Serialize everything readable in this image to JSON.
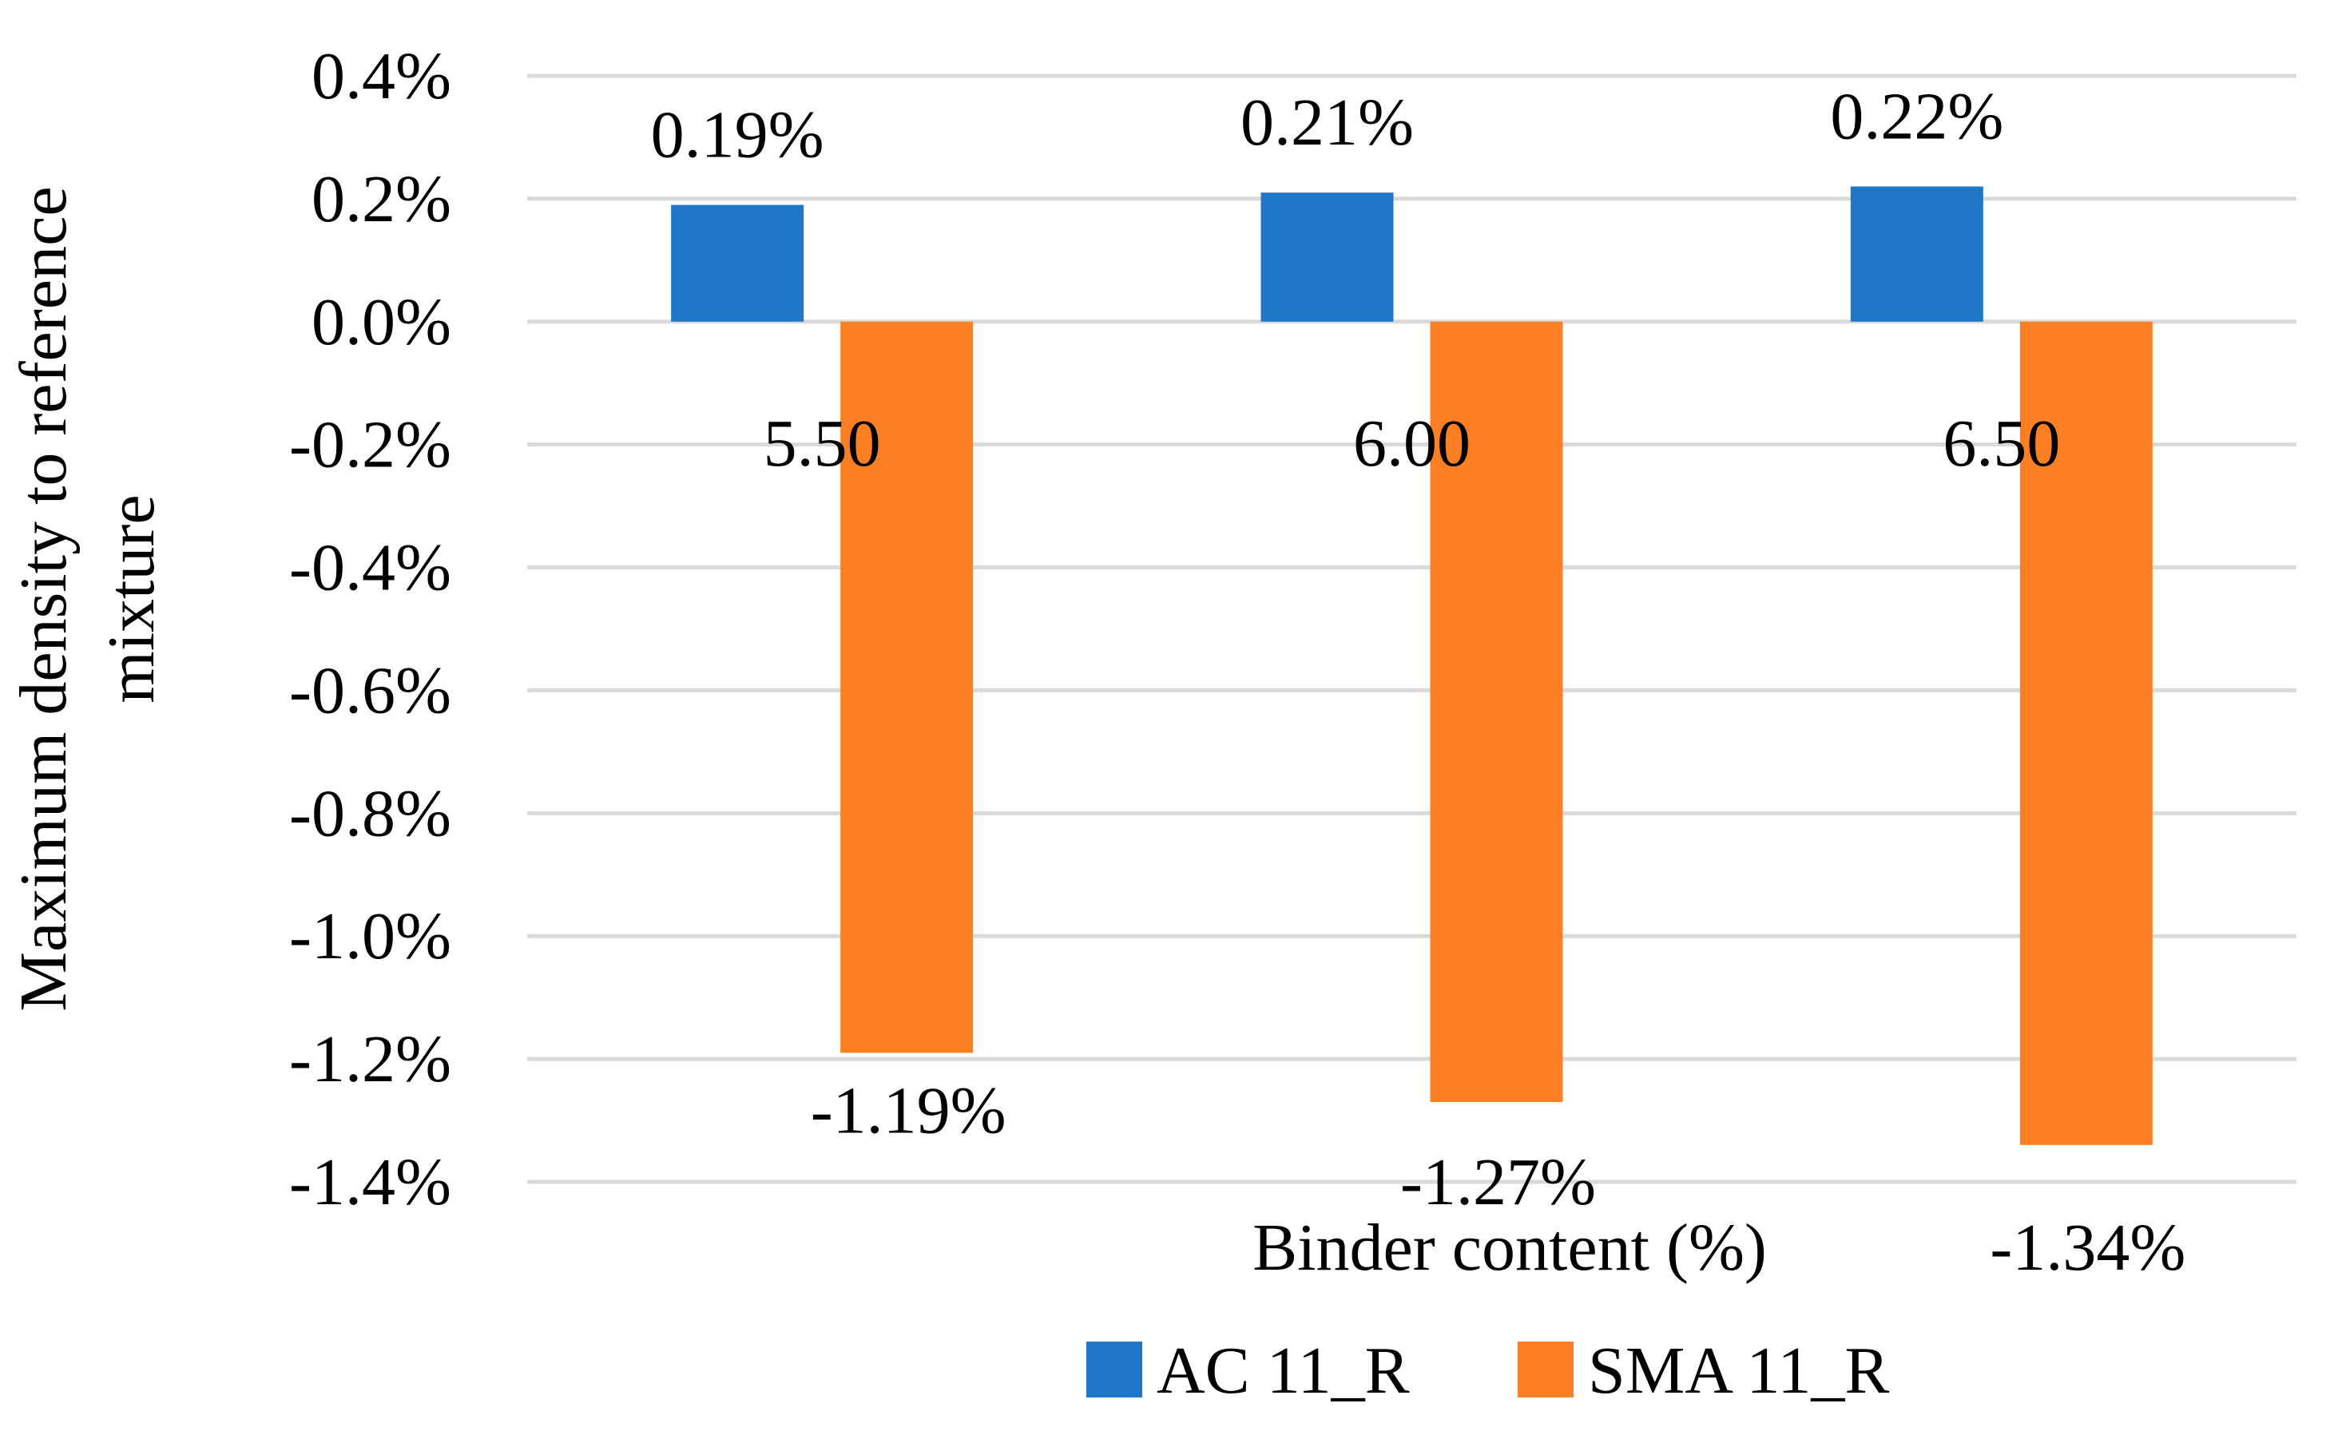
{
  "chart_data": {
    "type": "bar",
    "title": "",
    "xlabel": "Binder content (%)",
    "ylabel_lines": [
      "Maximum density to reference",
      "mixture"
    ],
    "categories": [
      "5.50",
      "6.00",
      "6.50"
    ],
    "series": [
      {
        "name": "AC 11_R",
        "color": "#1f77c9",
        "values": [
          0.19,
          0.21,
          0.22
        ],
        "labels": [
          "0.19%",
          "0.21%",
          "0.22%"
        ]
      },
      {
        "name": "SMA 11_R",
        "color": "#fd7f23",
        "values": [
          -1.19,
          -1.27,
          -1.34
        ],
        "labels": [
          "-1.19%",
          "-1.27%",
          "-1.34%"
        ]
      }
    ],
    "ylim": [
      -1.4,
      0.4
    ],
    "yticks": [
      "0.4%",
      "0.2%",
      "0.0%",
      "-0.2%",
      "-0.4%",
      "-0.6%",
      "-0.8%",
      "-1.0%",
      "-1.2%",
      "-1.4%"
    ],
    "grid": true,
    "legend_position": "bottom"
  }
}
